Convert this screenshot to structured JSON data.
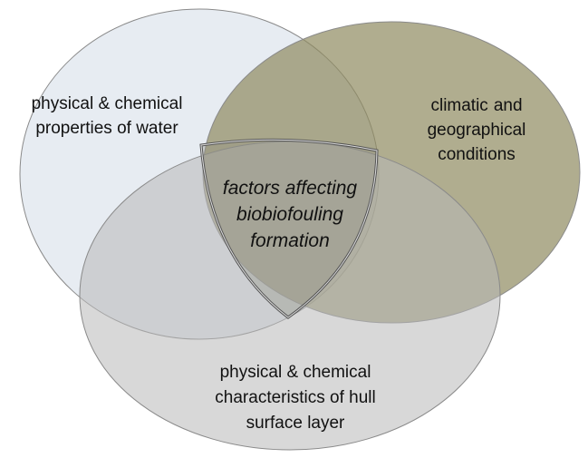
{
  "sets": [
    {
      "label_lines": [
        "physical & chemical",
        "properties of water"
      ]
    },
    {
      "label_lines": [
        "climatic",
        "and",
        "geographical",
        "conditions"
      ]
    },
    {
      "label_lines": [
        "physical & chemical",
        "characteristics of hull",
        "surface layer"
      ]
    }
  ],
  "center": {
    "label_lines": [
      "factors affecting",
      "biobiofouling",
      "formation"
    ]
  }
}
